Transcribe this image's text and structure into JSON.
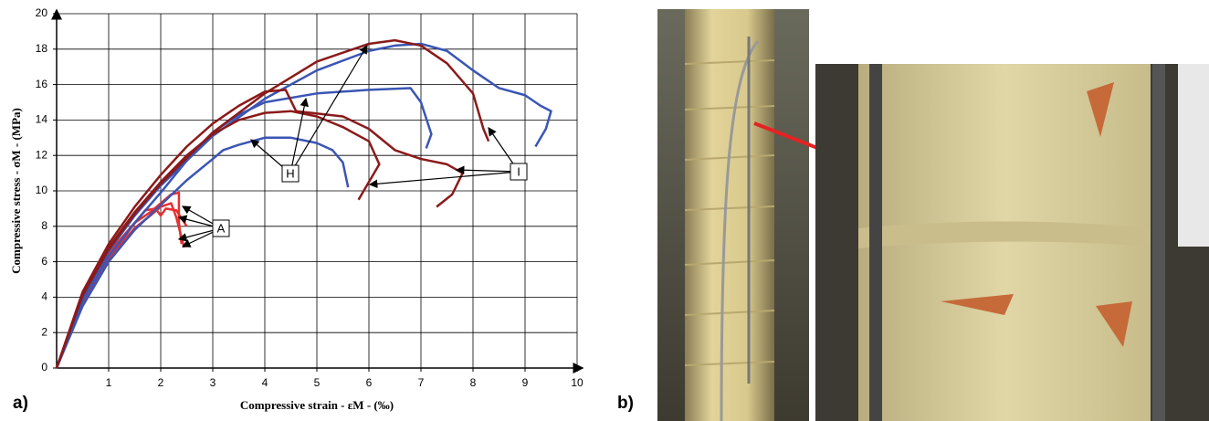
{
  "chart_data": {
    "type": "line",
    "panel_label": "a)",
    "xlabel": "Compressive strain - εM - (‰)",
    "ylabel": "Compressive stress - σM - (MPa)",
    "xlim": [
      0,
      10
    ],
    "xticks": [
      1,
      2,
      3,
      4,
      5,
      6,
      7,
      8,
      9,
      10
    ],
    "ylim": [
      0,
      20
    ],
    "yticks": [
      0,
      2,
      4,
      6,
      8,
      10,
      12,
      14,
      16,
      18,
      20
    ],
    "grid": true,
    "annotations": [
      "A",
      "H",
      "I"
    ],
    "series": [
      {
        "color": "#e53030",
        "x": [
          0,
          0.5,
          1,
          1.5,
          1.8,
          2.0,
          2.2,
          2.35,
          2.35,
          2.4
        ],
        "values": [
          0,
          4,
          6.5,
          8.2,
          8.8,
          9.3,
          9.8,
          9.9,
          8.2,
          7.0
        ]
      },
      {
        "color": "#e53030",
        "x": [
          0,
          0.5,
          1,
          1.5,
          1.8,
          2.0,
          2.2,
          2.3,
          2.45
        ],
        "values": [
          0,
          3.8,
          6.2,
          7.9,
          8.6,
          9.1,
          9.3,
          8.5,
          6.8
        ]
      },
      {
        "color": "#e53030",
        "x": [
          0,
          0.5,
          1,
          1.4,
          1.7,
          1.9,
          2.0,
          2.1,
          2.3,
          2.5
        ],
        "values": [
          0,
          3.7,
          6.1,
          7.8,
          8.9,
          9.0,
          8.6,
          9.0,
          8.9,
          8.0
        ]
      },
      {
        "color": "#3a55b4",
        "x": [
          0,
          0.5,
          1,
          1.5,
          2,
          2.5,
          3,
          3.2,
          3.5,
          4,
          4.5,
          5,
          5.3,
          5.5,
          5.6
        ],
        "values": [
          0,
          3.5,
          6,
          7.8,
          9.2,
          10.6,
          11.8,
          12.3,
          12.6,
          13.0,
          13.0,
          12.7,
          12.3,
          11.6,
          10.2
        ]
      },
      {
        "color": "#3a55b4",
        "x": [
          0,
          0.5,
          1,
          1.5,
          2,
          2.5,
          3,
          3.5,
          4,
          5,
          6,
          6.8,
          7.0,
          7.2,
          7.1
        ],
        "values": [
          0,
          3.8,
          6.3,
          8.2,
          9.9,
          11.7,
          13.3,
          14.3,
          15.0,
          15.5,
          15.7,
          15.8,
          15.0,
          13.2,
          12.4
        ]
      },
      {
        "color": "#3a55b4",
        "x": [
          0,
          0.5,
          1,
          1.5,
          2,
          3,
          4,
          5,
          6,
          6.5,
          7,
          7.5,
          8,
          8.5,
          9,
          9.3,
          9.5,
          9.4,
          9.2
        ],
        "values": [
          0,
          4,
          6.6,
          8.6,
          10.3,
          13.1,
          15.2,
          16.8,
          17.9,
          18.2,
          18.3,
          17.9,
          16.8,
          15.8,
          15.4,
          14.8,
          14.5,
          13.5,
          12.5
        ]
      },
      {
        "color": "#8b1a1a",
        "x": [
          0,
          0.5,
          1,
          1.5,
          2,
          2.5,
          3,
          3.5,
          4,
          4.5,
          5,
          5.5,
          6,
          6.2,
          6.0,
          5.8
        ],
        "values": [
          0,
          4.2,
          6.8,
          8.8,
          10.5,
          12,
          13.2,
          14.0,
          14.4,
          14.5,
          14.2,
          13.6,
          12.8,
          11.5,
          10.5,
          9.5
        ]
      },
      {
        "color": "#8b1a1a",
        "x": [
          0,
          0.5,
          1,
          1.5,
          2,
          2.5,
          3,
          3.5,
          4,
          4.4,
          4.6,
          5.5,
          6,
          6.5,
          7,
          7.5,
          7.8,
          7.6,
          7.3
        ],
        "values": [
          0,
          4.3,
          7,
          9.1,
          10.9,
          12.5,
          13.8,
          14.8,
          15.6,
          15.7,
          14.5,
          14.2,
          13.5,
          12.3,
          11.8,
          11.5,
          11.0,
          9.8,
          9.1
        ]
      },
      {
        "color": "#8b1a1a",
        "x": [
          0,
          0.5,
          1,
          1.5,
          2,
          3,
          4,
          5,
          6,
          6.5,
          7,
          7.5,
          8,
          8.2,
          8.3
        ],
        "values": [
          0,
          4.1,
          6.7,
          8.7,
          10.4,
          13.3,
          15.5,
          17.3,
          18.3,
          18.5,
          18.2,
          17.2,
          15.5,
          13.5,
          12.8
        ]
      }
    ]
  },
  "photos": {
    "panel_label": "b)"
  }
}
